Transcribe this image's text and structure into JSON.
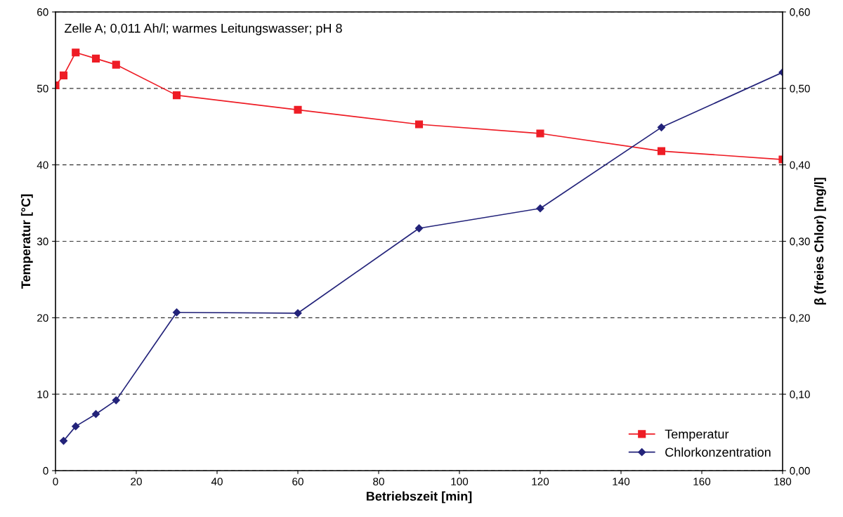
{
  "chart_data": {
    "type": "line",
    "xlabel": "Betriebszeit [min]",
    "ylabel": "Temperatur [°C]",
    "y2label": "β (freies Chlor) [mg/l]",
    "annotations": [
      "Zelle A; 0,011 Ah/l; warmes Leitungswasser; pH 8"
    ],
    "xlim": [
      0,
      180
    ],
    "xticks": [
      0,
      20,
      40,
      60,
      80,
      100,
      120,
      140,
      160,
      180
    ],
    "ylim": [
      0,
      60
    ],
    "yticks": [
      0,
      10,
      20,
      30,
      40,
      50,
      60
    ],
    "y2lim": [
      0,
      0.6
    ],
    "y2ticks": [
      {
        "value": 0,
        "label": "0,00"
      },
      {
        "value": 0.1,
        "label": "0,10"
      },
      {
        "value": 0.2,
        "label": "0,20"
      },
      {
        "value": 0.3,
        "label": "0,30"
      },
      {
        "value": 0.4,
        "label": "0,40"
      },
      {
        "value": 0.5,
        "label": "0,50"
      },
      {
        "value": 0.6,
        "label": "0,60"
      }
    ],
    "grid": "y",
    "legend": "bottom right",
    "series": [
      {
        "name": "Temperatur",
        "color": "#ee1c25",
        "marker": "square",
        "x": [
          0,
          2,
          5,
          10,
          15,
          30,
          60,
          90,
          120,
          150,
          180
        ],
        "values": [
          50.4,
          51.7,
          54.7,
          53.9,
          53.1,
          49.1,
          47.2,
          45.3,
          44.1,
          41.8,
          40.7
        ]
      },
      {
        "name": "Chlorkonzentration",
        "color": "#23237a",
        "marker": "diamond",
        "axis": "y2",
        "x": [
          2,
          5,
          10,
          15,
          30,
          60,
          90,
          120,
          150,
          180
        ],
        "values": [
          0.039,
          0.058,
          0.074,
          0.092,
          0.207,
          0.206,
          0.317,
          0.343,
          0.449,
          0.521
        ]
      }
    ]
  }
}
